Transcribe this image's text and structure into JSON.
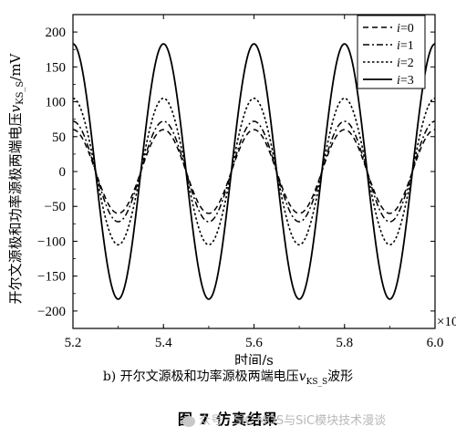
{
  "chart_data": {
    "type": "line",
    "title": "",
    "ylabel_prefix": "开尔文源极和功率源极两端电压",
    "ylabel_var": "v",
    "ylabel_sub": "KS_S",
    "ylabel_suffix": "/mV",
    "xlabel": "时间/s",
    "x_multiplier": "×10",
    "xlim": [
      5.2,
      6.0
    ],
    "ylim": [
      -225,
      225
    ],
    "xticks": [
      "5.2",
      "5.4",
      "5.6",
      "5.8",
      "6.0"
    ],
    "yticks": [
      "200",
      "150",
      "100",
      "50",
      "0",
      "−50",
      "−100",
      "−150",
      "−200"
    ],
    "grid": false,
    "legend_position": "top-right",
    "series": [
      {
        "name": "i=0",
        "var": "i",
        "val": "=0",
        "dash": "dashed",
        "amplitude": 60,
        "offset": 0,
        "period": 0.2,
        "peak_x": 5.4
      },
      {
        "name": "i=1",
        "var": "i",
        "val": "=1",
        "dash": "dash-dot",
        "amplitude": 72,
        "offset": 0,
        "period": 0.2,
        "peak_x": 5.4
      },
      {
        "name": "i=2",
        "var": "i",
        "val": "=2",
        "dash": "dotted",
        "amplitude": 105,
        "offset": 0,
        "period": 0.2,
        "peak_x": 5.4
      },
      {
        "name": "i=3",
        "var": "i",
        "val": "=3",
        "dash": "solid",
        "amplitude": 183,
        "offset": 0,
        "period": 0.2,
        "peak_x": 5.4
      }
    ]
  },
  "captions": {
    "sub_prefix": "b)  开尔文源极和功率源极两端电压",
    "sub_var": "v",
    "sub_sub": "KS_S",
    "sub_suffix": "波形",
    "figure": "图 7   仿真结果"
  },
  "watermark": {
    "text": "众号 · SiC MOS与SiC模块技术漫谈"
  }
}
